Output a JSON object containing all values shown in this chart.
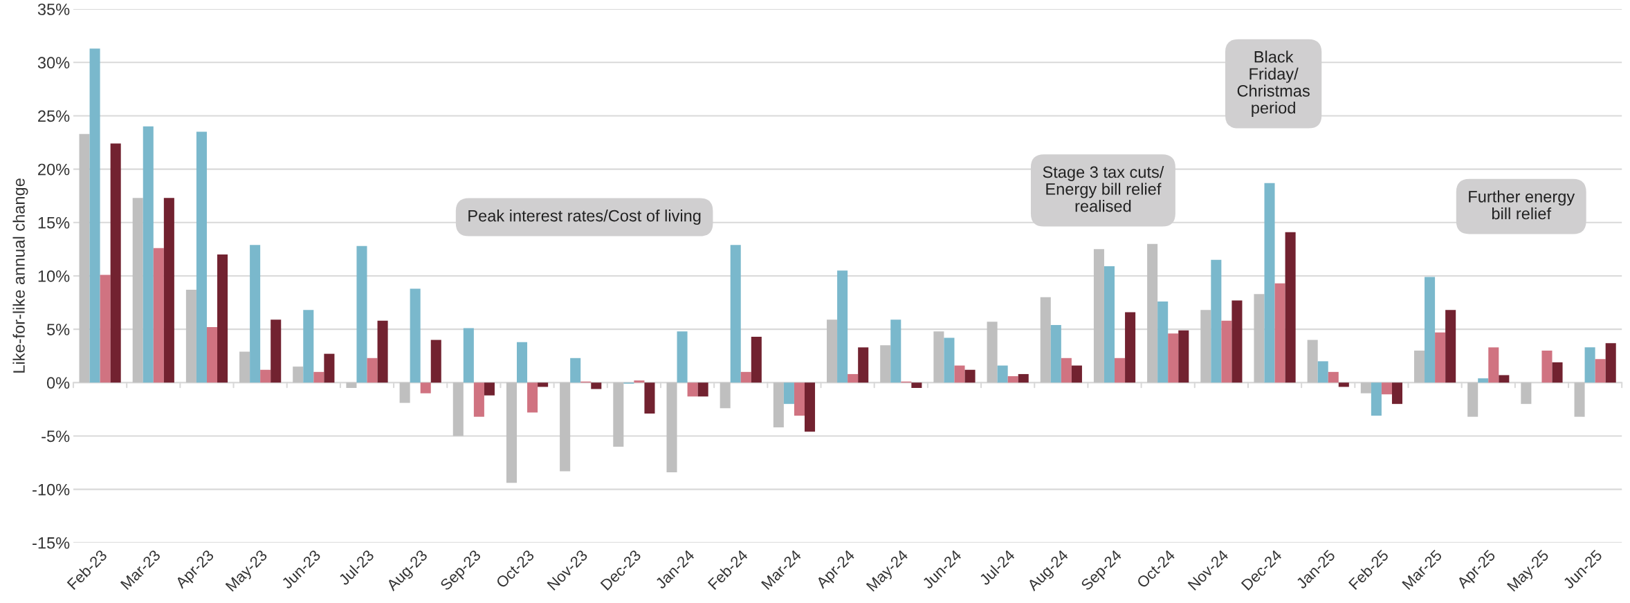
{
  "chart_data": {
    "type": "bar",
    "ylabel": "Like-for-like annual change",
    "categories": [
      "Feb-23",
      "Mar-23",
      "Apr-23",
      "May-23",
      "Jun-23",
      "Jul-23",
      "Aug-23",
      "Sep-23",
      "Oct-23",
      "Nov-23",
      "Dec-23",
      "Jan-24",
      "Feb-24",
      "Mar-24",
      "Apr-24",
      "May-24",
      "Jun-24",
      "Jul-24",
      "Aug-24",
      "Sep-24",
      "Oct-24",
      "Nov-24",
      "Dec-24",
      "Jan-25",
      "Feb-25",
      "Mar-25",
      "Apr-25",
      "May-25",
      "Jun-25"
    ],
    "series": [
      {
        "color": "#bfbfbf",
        "values": [
          23.3,
          17.3,
          8.7,
          2.9,
          1.5,
          -0.5,
          -1.9,
          -5.0,
          -9.4,
          -8.3,
          -6.0,
          -8.4,
          -2.4,
          -4.2,
          5.9,
          3.5,
          4.8,
          5.7,
          8.0,
          12.5,
          13.0,
          6.8,
          8.3,
          4.0,
          -1.0,
          3.0,
          -3.2,
          -2.0,
          -3.2
        ]
      },
      {
        "color": "#7ab8cc",
        "values": [
          31.3,
          24.0,
          23.5,
          12.9,
          6.8,
          12.8,
          8.8,
          5.1,
          3.8,
          2.3,
          -0.1,
          4.8,
          12.9,
          -2.0,
          10.5,
          5.9,
          4.2,
          1.6,
          5.4,
          10.9,
          7.6,
          11.5,
          18.7,
          2.0,
          -3.1,
          9.9,
          0.4,
          null,
          3.3
        ]
      },
      {
        "color": "#d07381",
        "values": [
          10.1,
          12.6,
          5.2,
          1.2,
          1.0,
          2.3,
          -1.0,
          -3.2,
          -2.8,
          0.1,
          0.2,
          -1.3,
          1.0,
          -3.1,
          0.8,
          0.1,
          1.6,
          0.6,
          2.3,
          2.3,
          4.6,
          5.8,
          9.3,
          1.0,
          -1.1,
          4.7,
          3.3,
          3.0,
          2.2
        ]
      },
      {
        "color": "#722230",
        "values": [
          22.4,
          17.3,
          12.0,
          5.9,
          2.7,
          5.8,
          4.0,
          -1.2,
          -0.4,
          -0.6,
          -2.9,
          -1.3,
          4.3,
          -4.6,
          3.3,
          -0.5,
          1.2,
          0.8,
          1.6,
          6.6,
          4.9,
          7.7,
          14.1,
          -0.4,
          -2.0,
          6.8,
          0.7,
          1.9,
          3.7
        ]
      }
    ],
    "ylim": [
      -15,
      35
    ],
    "yticks": [
      {
        "value": -15,
        "label": "-15%"
      },
      {
        "value": -10,
        "label": "-10%"
      },
      {
        "value": -5,
        "label": "-5%"
      },
      {
        "value": 0,
        "label": "0%"
      },
      {
        "value": 5,
        "label": "5%"
      },
      {
        "value": 10,
        "label": "10%"
      },
      {
        "value": 15,
        "label": "15%"
      },
      {
        "value": 20,
        "label": "20%"
      },
      {
        "value": 25,
        "label": "25%"
      },
      {
        "value": 30,
        "label": "30%"
      },
      {
        "value": 35,
        "label": "35%"
      }
    ],
    "grid": "y",
    "legend": false,
    "annotations": [
      "Peak interest rates/Cost of living",
      "Stage 3 tax cuts/\nEnergy bill relief\nrealised",
      "Black\nFriday/\nChristmas\nperiod",
      "Further energy\nbill relief"
    ]
  }
}
